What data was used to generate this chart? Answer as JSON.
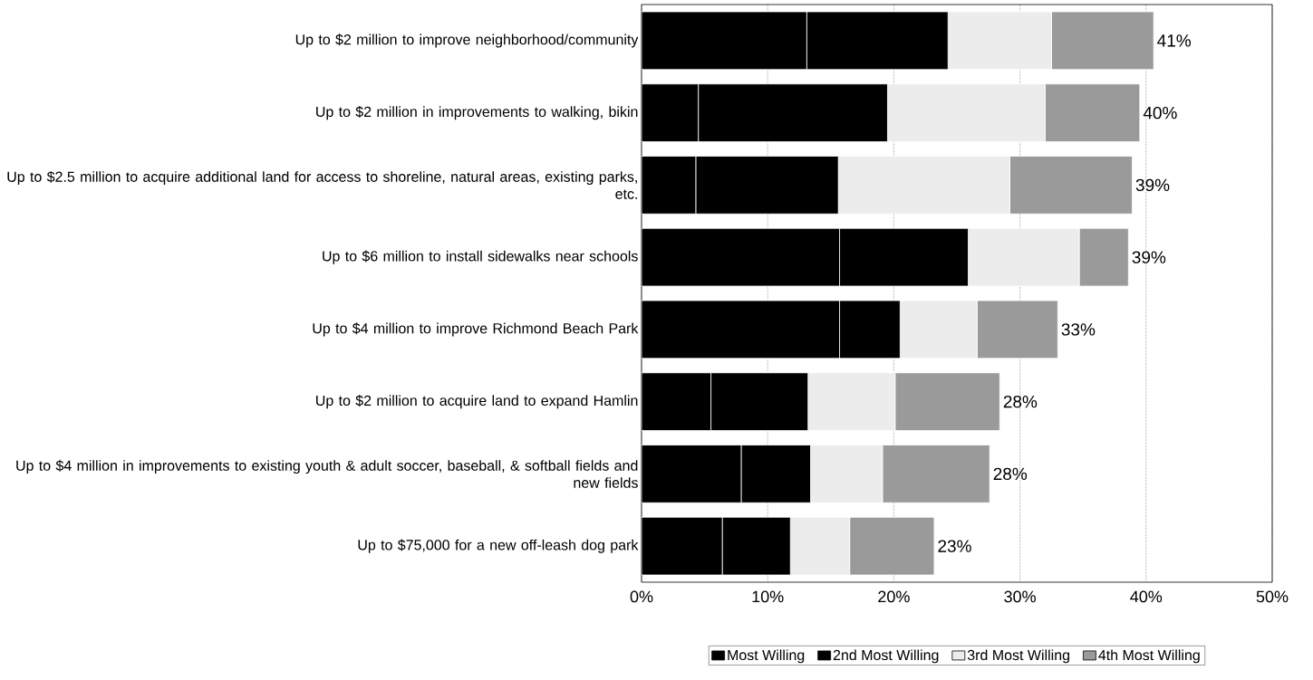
{
  "chart_data": {
    "type": "bar",
    "orientation": "horizontal",
    "stacked": true,
    "categories": [
      "Up to $2 million to improve neighborhood/community",
      "Up to $2 million in improvements to walking, bikin",
      "Up to $2.5 million to acquire additional land for access to shoreline, natural areas, existing parks, etc.",
      "Up to $6 million to install sidewalks near schools",
      "Up to $4 million to improve Richmond Beach Park",
      "Up to $2 million to acquire land to expand Hamlin",
      "Up to $4 million in improvements to existing youth & adult soccer, baseball, & softball fields and new fields",
      "Up to $75,000 for a new off-leash dog park"
    ],
    "series": [
      {
        "name": "Most Willing",
        "color": "#000000",
        "values": [
          13.1,
          4.5,
          4.3,
          15.7,
          15.7,
          5.5,
          7.9,
          6.4
        ]
      },
      {
        "name": "2nd Most Willing",
        "color": "#000000",
        "values": [
          11.2,
          15.0,
          11.3,
          10.2,
          4.8,
          7.7,
          5.5,
          5.4
        ]
      },
      {
        "name": "3rd Most Willing",
        "color": "#ececec",
        "values": [
          8.2,
          12.5,
          13.6,
          8.8,
          6.1,
          6.9,
          5.7,
          4.7
        ]
      },
      {
        "name": "4th Most Willing",
        "color": "#9a9a9a",
        "values": [
          8.1,
          7.5,
          9.7,
          3.9,
          6.4,
          8.3,
          8.5,
          6.7
        ]
      }
    ],
    "totals": [
      "41%",
      "40%",
      "39%",
      "39%",
      "33%",
      "28%",
      "28%",
      "23%"
    ],
    "xlim": [
      0,
      50
    ],
    "xticks": [
      {
        "value": 0,
        "label": "0%"
      },
      {
        "value": 10,
        "label": "10%"
      },
      {
        "value": 20,
        "label": "20%"
      },
      {
        "value": 30,
        "label": "30%"
      },
      {
        "value": 40,
        "label": "40%"
      },
      {
        "value": 50,
        "label": "50%"
      }
    ],
    "grid": "x",
    "legend": "bottom"
  }
}
